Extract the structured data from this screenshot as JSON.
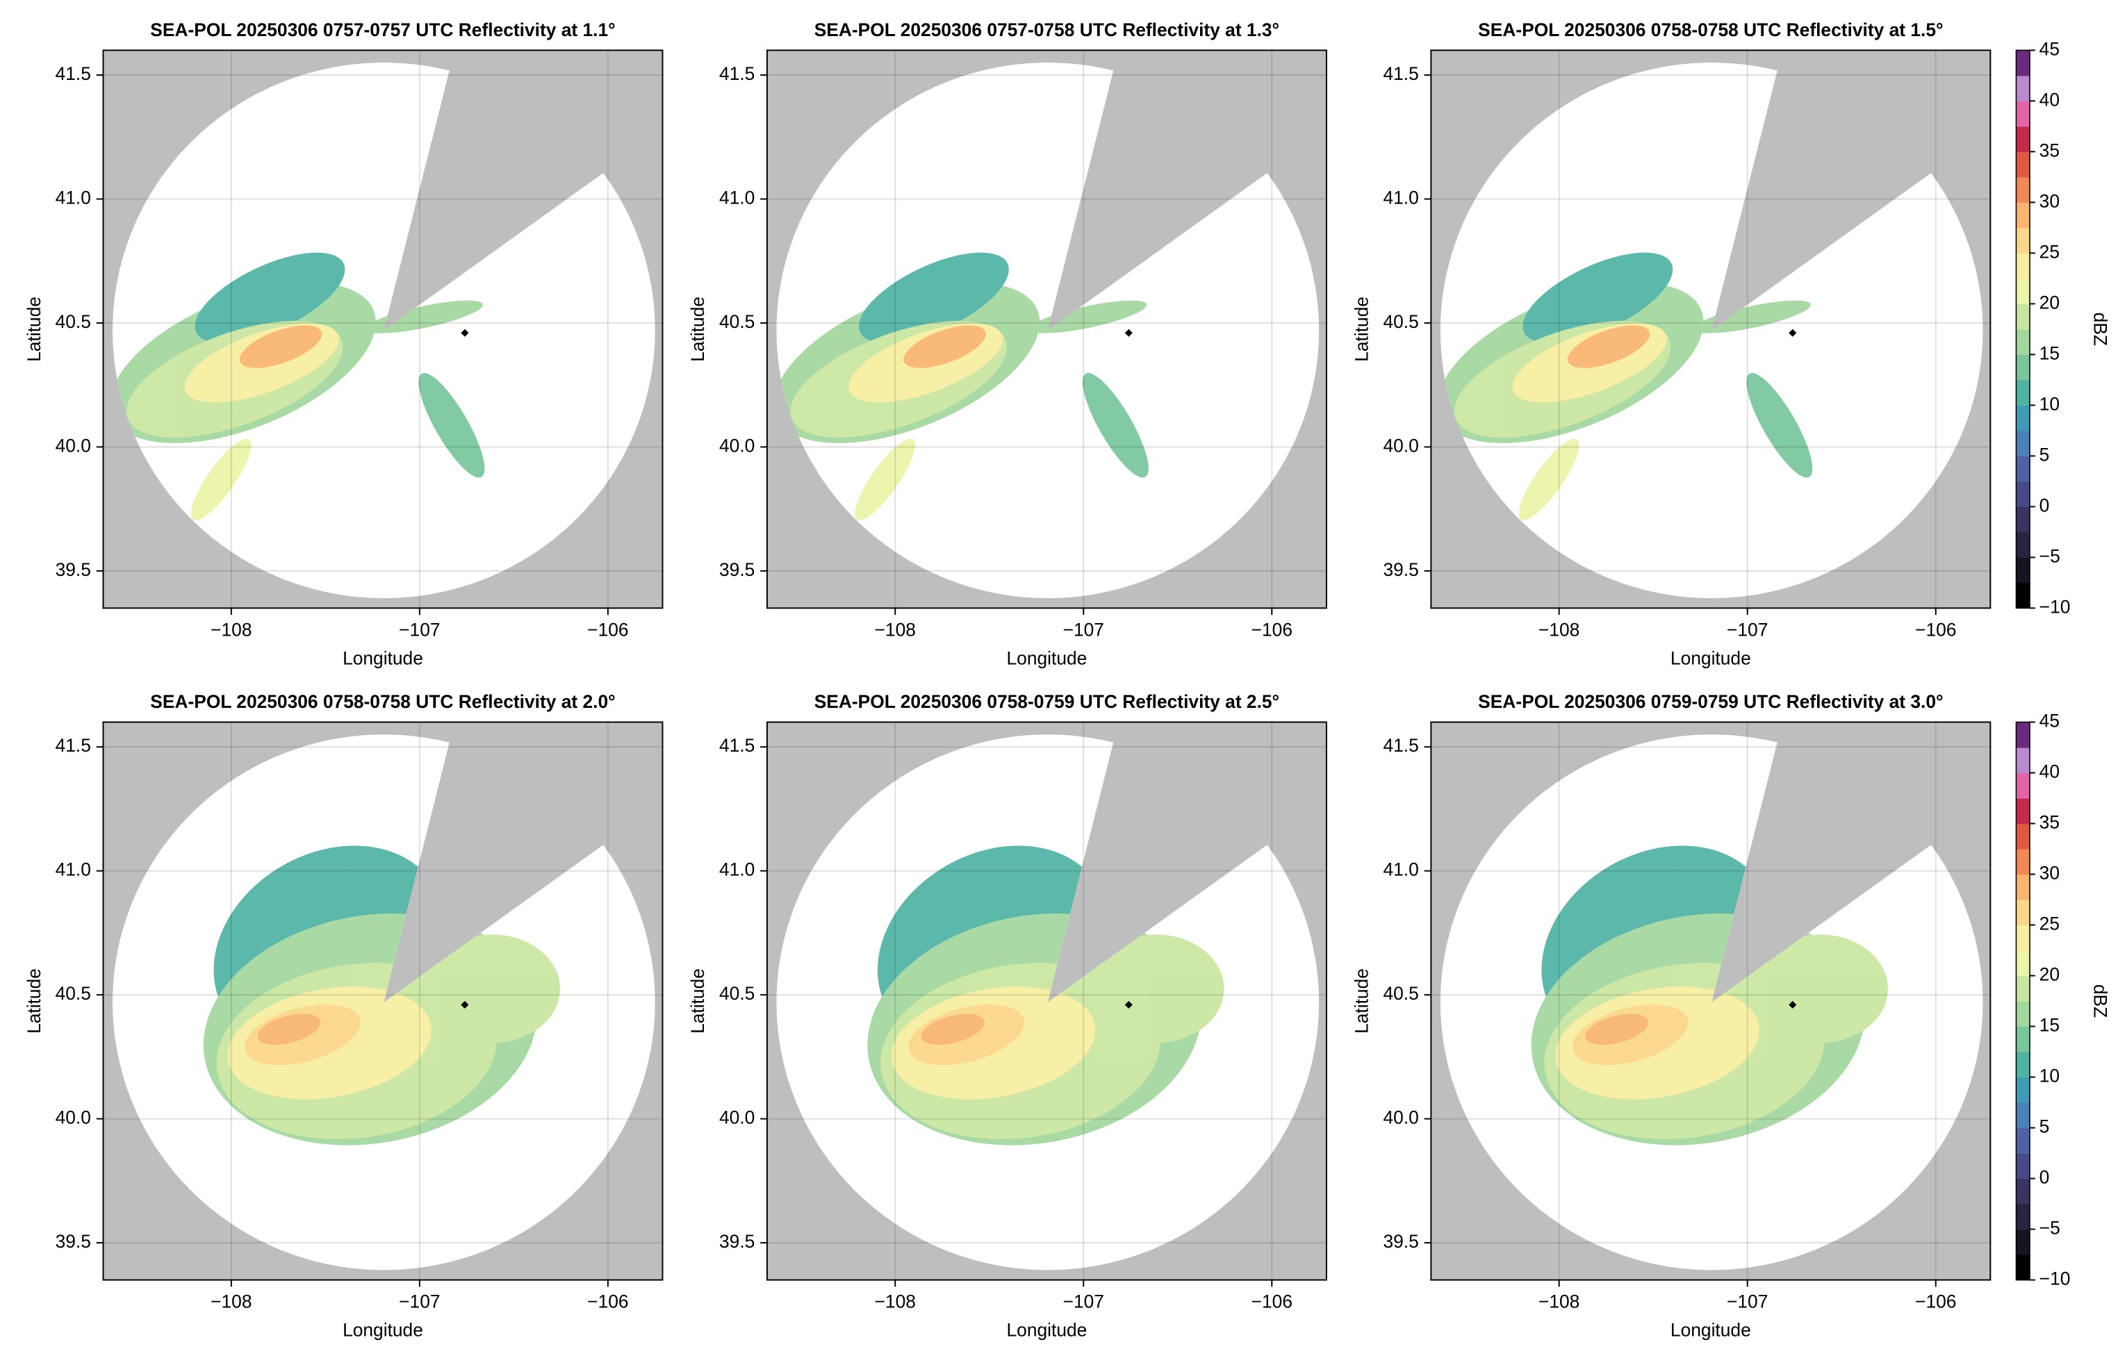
{
  "chart_data": [
    {
      "type": "ppi",
      "title": "SEA-POL 20250306 0757-0757 UTC Reflectivity at 1.1°",
      "xlabel": "Longitude",
      "ylabel": "Latitude",
      "xlim": [
        -108.68,
        -105.71
      ],
      "ylim": [
        39.35,
        41.6
      ],
      "xticks": [
        {
          "value": -108,
          "label": "−108"
        },
        {
          "value": -107,
          "label": "−107"
        },
        {
          "value": -106,
          "label": "−106"
        }
      ],
      "yticks": [
        39.5,
        {
          "value": 40,
          "label": "40.0"
        },
        40.5,
        {
          "value": 41,
          "label": "41.0"
        },
        41.5
      ],
      "grid": true,
      "range_ring": {
        "center": [
          -107.19,
          40.47
        ],
        "radius_lon": 1.44,
        "radius_lat": 1.08
      },
      "blocked_sector": [
        14,
        54
      ],
      "site": [
        -106.76,
        40.46
      ]
    },
    {
      "type": "ppi",
      "title": "SEA-POL 20250306 0757-0758 UTC Reflectivity at 1.3°",
      "xlabel": "Longitude",
      "ylabel": "Latitude",
      "xlim": [
        -108.68,
        -105.71
      ],
      "ylim": [
        39.35,
        41.6
      ],
      "xticks": [
        {
          "value": -108,
          "label": "−108"
        },
        {
          "value": -107,
          "label": "−107"
        },
        {
          "value": -106,
          "label": "−106"
        }
      ],
      "yticks": [
        39.5,
        {
          "value": 40,
          "label": "40.0"
        },
        40.5,
        {
          "value": 41,
          "label": "41.0"
        },
        41.5
      ],
      "grid": true,
      "range_ring": {
        "center": [
          -107.19,
          40.47
        ],
        "radius_lon": 1.44,
        "radius_lat": 1.08
      },
      "blocked_sector": [
        14,
        54
      ],
      "site": [
        -106.76,
        40.46
      ]
    },
    {
      "type": "ppi",
      "title": "SEA-POL 20250306 0758-0758 UTC Reflectivity at 1.5°",
      "xlabel": "Longitude",
      "ylabel": "Latitude",
      "xlim": [
        -108.68,
        -105.71
      ],
      "ylim": [
        39.35,
        41.6
      ],
      "xticks": [
        {
          "value": -108,
          "label": "−108"
        },
        {
          "value": -107,
          "label": "−107"
        },
        {
          "value": -106,
          "label": "−106"
        }
      ],
      "yticks": [
        39.5,
        {
          "value": 40,
          "label": "40.0"
        },
        40.5,
        {
          "value": 41,
          "label": "41.0"
        },
        41.5
      ],
      "grid": true,
      "range_ring": {
        "center": [
          -107.19,
          40.47
        ],
        "radius_lon": 1.44,
        "radius_lat": 1.08
      },
      "blocked_sector": [
        14,
        54
      ],
      "site": [
        -106.76,
        40.46
      ],
      "colorbar": {
        "label": "dBZ",
        "lim": [
          -10,
          45
        ],
        "ticks": [
          {
            "value": -10,
            "label": "−10"
          },
          {
            "value": -5,
            "label": "−5"
          },
          0,
          5,
          10,
          15,
          20,
          25,
          30,
          35,
          40,
          45
        ],
        "colormap": [
          "#000000",
          "#17131f",
          "#2a2340",
          "#3a3460",
          "#474a86",
          "#4f62a6",
          "#4a7fb8",
          "#3f9bb6",
          "#4fb3a3",
          "#77c69c",
          "#a2d79e",
          "#c9e6a0",
          "#ebf4a8",
          "#f8ee9f",
          "#fcd688",
          "#f9b46e",
          "#f08a55",
          "#dd5b42",
          "#c42a4a",
          "#e066a8",
          "#b98ad0",
          "#6a2a7e"
        ]
      }
    },
    {
      "type": "ppi",
      "title": "SEA-POL 20250306 0758-0758 UTC Reflectivity at 2.0°",
      "xlabel": "Longitude",
      "ylabel": "Latitude",
      "xlim": [
        -108.68,
        -105.71
      ],
      "ylim": [
        39.35,
        41.6
      ],
      "xticks": [
        {
          "value": -108,
          "label": "−108"
        },
        {
          "value": -107,
          "label": "−107"
        },
        {
          "value": -106,
          "label": "−106"
        }
      ],
      "yticks": [
        39.5,
        {
          "value": 40,
          "label": "40.0"
        },
        40.5,
        {
          "value": 41,
          "label": "41.0"
        },
        41.5
      ],
      "grid": true,
      "range_ring": {
        "center": [
          -107.19,
          40.47
        ],
        "radius_lon": 1.44,
        "radius_lat": 1.08
      },
      "blocked_sector": [
        14,
        54
      ],
      "site": [
        -106.76,
        40.46
      ]
    },
    {
      "type": "ppi",
      "title": "SEA-POL 20250306 0758-0759 UTC Reflectivity at 2.5°",
      "xlabel": "Longitude",
      "ylabel": "Latitude",
      "xlim": [
        -108.68,
        -105.71
      ],
      "ylim": [
        39.35,
        41.6
      ],
      "xticks": [
        {
          "value": -108,
          "label": "−108"
        },
        {
          "value": -107,
          "label": "−107"
        },
        {
          "value": -106,
          "label": "−106"
        }
      ],
      "yticks": [
        39.5,
        {
          "value": 40,
          "label": "40.0"
        },
        40.5,
        {
          "value": 41,
          "label": "41.0"
        },
        41.5
      ],
      "grid": true,
      "range_ring": {
        "center": [
          -107.19,
          40.47
        ],
        "radius_lon": 1.44,
        "radius_lat": 1.08
      },
      "blocked_sector": [
        14,
        54
      ],
      "site": [
        -106.76,
        40.46
      ]
    },
    {
      "type": "ppi",
      "title": "SEA-POL 20250306 0759-0759 UTC Reflectivity at 3.0°",
      "xlabel": "Longitude",
      "ylabel": "Latitude",
      "xlim": [
        -108.68,
        -105.71
      ],
      "ylim": [
        39.35,
        41.6
      ],
      "xticks": [
        {
          "value": -108,
          "label": "−108"
        },
        {
          "value": -107,
          "label": "−107"
        },
        {
          "value": -106,
          "label": "−106"
        }
      ],
      "yticks": [
        39.5,
        {
          "value": 40,
          "label": "40.0"
        },
        40.5,
        {
          "value": 41,
          "label": "41.0"
        },
        41.5
      ],
      "grid": true,
      "range_ring": {
        "center": [
          -107.19,
          40.47
        ],
        "radius_lon": 1.44,
        "radius_lat": 1.08
      },
      "blocked_sector": [
        14,
        54
      ],
      "site": [
        -106.76,
        40.46
      ],
      "colorbar": {
        "label": "dBZ",
        "lim": [
          -10,
          45
        ],
        "ticks": [
          {
            "value": -10,
            "label": "−10"
          },
          {
            "value": -5,
            "label": "−5"
          },
          0,
          5,
          10,
          15,
          20,
          25,
          30,
          35,
          40,
          45
        ],
        "colormap": [
          "#000000",
          "#17131f",
          "#2a2340",
          "#3a3460",
          "#474a86",
          "#4f62a6",
          "#4a7fb8",
          "#3f9bb6",
          "#4fb3a3",
          "#77c69c",
          "#a2d79e",
          "#c9e6a0",
          "#ebf4a8",
          "#f8ee9f",
          "#fcd688",
          "#f9b46e",
          "#f08a55",
          "#dd5b42",
          "#c42a4a",
          "#e066a8",
          "#b98ad0",
          "#6a2a7e"
        ]
      }
    }
  ]
}
